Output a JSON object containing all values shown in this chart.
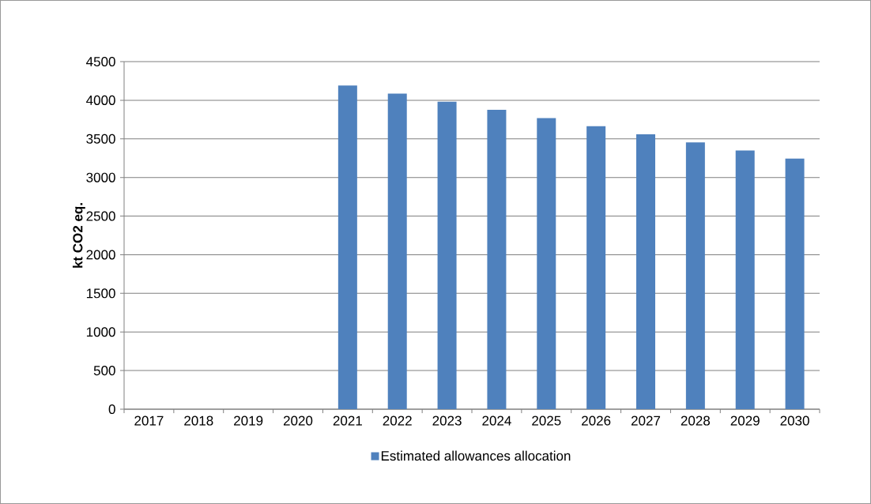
{
  "chart_data": {
    "type": "bar",
    "ylabel": "kt CO2 eq.",
    "categories": [
      "2017",
      "2018",
      "2019",
      "2020",
      "2021",
      "2022",
      "2023",
      "2024",
      "2025",
      "2026",
      "2027",
      "2028",
      "2029",
      "2030"
    ],
    "series": [
      {
        "name": "Estimated allowances allocation",
        "color": "#4f81bd",
        "values": [
          null,
          null,
          null,
          null,
          4190,
          4085,
          3980,
          3875,
          3770,
          3665,
          3560,
          3455,
          3350,
          3245
        ]
      }
    ],
    "ylim": [
      0,
      4500
    ],
    "yticks": [
      0,
      500,
      1000,
      1500,
      2000,
      2500,
      3000,
      3500,
      4000,
      4500
    ],
    "grid": "y",
    "legend": "bottom"
  }
}
